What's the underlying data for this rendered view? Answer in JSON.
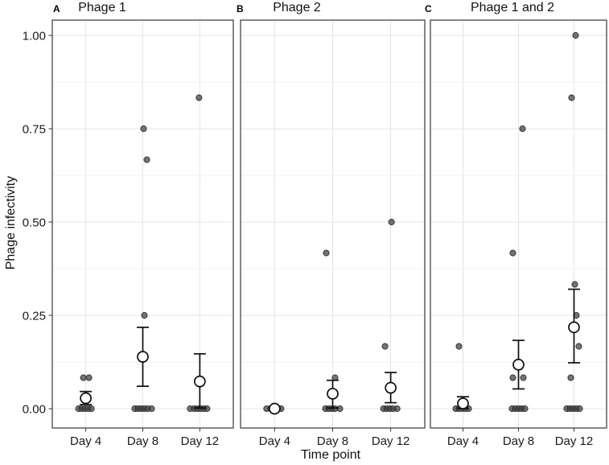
{
  "figure": {
    "y_axis_title": "Phage infectivity",
    "x_axis_title": "Time point"
  },
  "chart_data": {
    "type": "scatter",
    "title": "",
    "subtitle": "",
    "ylabel": "Phage infectivity",
    "xlabel": "Time point",
    "legend": "none",
    "grid": "horizontal major+minor light gray, vertical major at each category",
    "categories": [
      "Day 4",
      "Day 8",
      "Day 12"
    ],
    "ylim": [
      -0.05,
      1.04
    ],
    "y_ticks": [
      {
        "v": 0.0,
        "label": "0.00"
      },
      {
        "v": 0.25,
        "label": "0.25"
      },
      {
        "v": 0.5,
        "label": "0.50"
      },
      {
        "v": 0.75,
        "label": "0.75"
      },
      {
        "v": 1.0,
        "label": "1.00"
      }
    ],
    "y_minor_ticks": [
      0.125,
      0.375,
      0.625,
      0.875
    ],
    "colors": {
      "point_fill": "#3e3e3e",
      "point_edge": "#1c1c1c",
      "mean_fill": "#ffffff",
      "mean_edge": "#0d0d0d",
      "grid_major": "#e4e4e4",
      "grid_minor": "#f2f2f2",
      "panel_border": "#454545",
      "text": "#1a1a1a"
    },
    "panels": [
      {
        "letter": "A",
        "title": "Phage 1",
        "groups": [
          {
            "category": "Day 4",
            "mean": 0.028,
            "err_low": 0.011,
            "err_high": 0.046,
            "points": [
              {
                "v": 0,
                "j": -9
              },
              {
                "v": 0,
                "j": -5
              },
              {
                "v": 0,
                "j": -1
              },
              {
                "v": 0,
                "j": 3
              },
              {
                "v": 0,
                "j": 7
              },
              {
                "v": 0.083,
                "j": -3
              },
              {
                "v": 0.083,
                "j": 4
              }
            ]
          },
          {
            "category": "Day 8",
            "mean": 0.139,
            "err_low": 0.06,
            "err_high": 0.218,
            "points": [
              {
                "v": 0,
                "j": -10
              },
              {
                "v": 0,
                "j": -6
              },
              {
                "v": 0,
                "j": -2
              },
              {
                "v": 0,
                "j": 2
              },
              {
                "v": 0,
                "j": 6
              },
              {
                "v": 0,
                "j": 11
              },
              {
                "v": 0.25,
                "j": 2
              },
              {
                "v": 0.667,
                "j": 5
              },
              {
                "v": 0.75,
                "j": 1
              }
            ]
          },
          {
            "category": "Day 12",
            "mean": 0.073,
            "err_low": 0.002,
            "err_high": 0.147,
            "points": [
              {
                "v": 0,
                "j": -12
              },
              {
                "v": 0,
                "j": -7
              },
              {
                "v": 0,
                "j": -3
              },
              {
                "v": 0,
                "j": 1
              },
              {
                "v": 0,
                "j": 5
              },
              {
                "v": 0,
                "j": 9
              },
              {
                "v": 0.833,
                "j": -1
              }
            ]
          }
        ]
      },
      {
        "letter": "B",
        "title": "Phage 2",
        "groups": [
          {
            "category": "Day 4",
            "mean": 0.0,
            "err_low": null,
            "err_high": null,
            "points": [
              {
                "v": 0,
                "j": -10
              },
              {
                "v": 0,
                "j": -5
              },
              {
                "v": 0,
                "j": 0
              },
              {
                "v": 0,
                "j": 4
              },
              {
                "v": 0,
                "j": 8
              }
            ]
          },
          {
            "category": "Day 8",
            "mean": 0.04,
            "err_low": 0.002,
            "err_high": 0.076,
            "points": [
              {
                "v": 0,
                "j": -9
              },
              {
                "v": 0,
                "j": -5
              },
              {
                "v": 0,
                "j": -1
              },
              {
                "v": 0,
                "j": 3
              },
              {
                "v": 0,
                "j": 9
              },
              {
                "v": 0.083,
                "j": 3
              },
              {
                "v": 0.417,
                "j": -8
              }
            ]
          },
          {
            "category": "Day 12",
            "mean": 0.056,
            "err_low": 0.016,
            "err_high": 0.097,
            "points": [
              {
                "v": 0,
                "j": -9
              },
              {
                "v": 0,
                "j": -5
              },
              {
                "v": 0,
                "j": -1
              },
              {
                "v": 0,
                "j": 3
              },
              {
                "v": 0,
                "j": 8
              },
              {
                "v": 0.167,
                "j": -7
              },
              {
                "v": 0.5,
                "j": 1
              }
            ]
          }
        ]
      },
      {
        "letter": "C",
        "title": "Phage 1 and 2",
        "groups": [
          {
            "category": "Day 4",
            "mean": 0.014,
            "err_low": 0.001,
            "err_high": 0.032,
            "points": [
              {
                "v": 0,
                "j": -9
              },
              {
                "v": 0,
                "j": -5
              },
              {
                "v": 0,
                "j": -1
              },
              {
                "v": 0,
                "j": 3
              },
              {
                "v": 0,
                "j": 7
              },
              {
                "v": 0.167,
                "j": -5
              }
            ]
          },
          {
            "category": "Day 8",
            "mean": 0.118,
            "err_low": 0.053,
            "err_high": 0.183,
            "points": [
              {
                "v": 0,
                "j": -8
              },
              {
                "v": 0,
                "j": -4
              },
              {
                "v": 0,
                "j": 0
              },
              {
                "v": 0,
                "j": 4
              },
              {
                "v": 0,
                "j": 8
              },
              {
                "v": 0.083,
                "j": -7
              },
              {
                "v": 0.083,
                "j": 6
              },
              {
                "v": 0.417,
                "j": -7
              },
              {
                "v": 0.75,
                "j": 5
              }
            ]
          },
          {
            "category": "Day 12",
            "mean": 0.218,
            "err_low": 0.123,
            "err_high": 0.32,
            "points": [
              {
                "v": 0,
                "j": -9
              },
              {
                "v": 0,
                "j": -5
              },
              {
                "v": 0,
                "j": -1
              },
              {
                "v": 0,
                "j": 3
              },
              {
                "v": 0,
                "j": 7
              },
              {
                "v": 0.083,
                "j": -4
              },
              {
                "v": 0.167,
                "j": 6
              },
              {
                "v": 0.25,
                "j": 3
              },
              {
                "v": 0.333,
                "j": 1
              },
              {
                "v": 0.833,
                "j": -3
              },
              {
                "v": 1.0,
                "j": 2
              }
            ]
          }
        ]
      }
    ]
  }
}
